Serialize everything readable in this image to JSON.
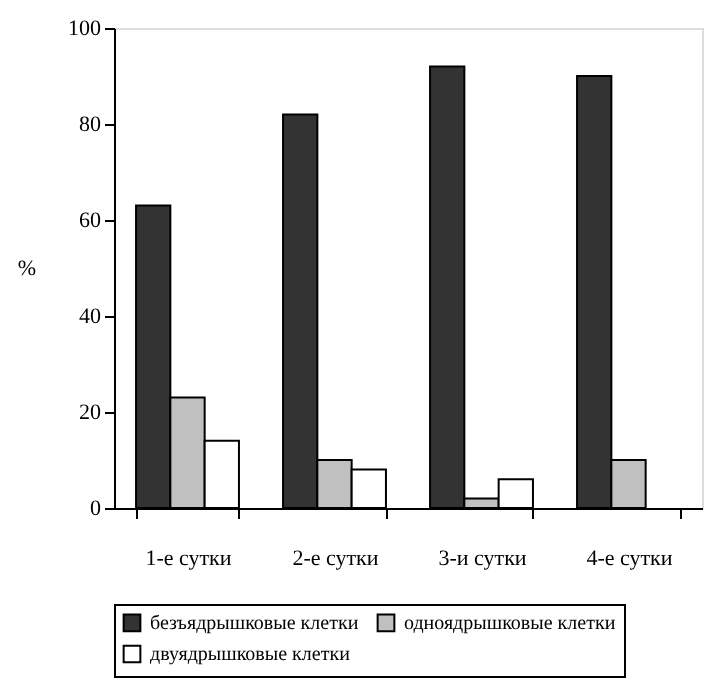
{
  "chart_data": {
    "type": "bar",
    "ylabel": "%",
    "categories": [
      "1-е сутки",
      "2-е сутки",
      "3-и сутки",
      "4-е сутки"
    ],
    "series": [
      {
        "name": "безъядрышковые клетки",
        "color": "#333333",
        "values": [
          63,
          82,
          92,
          90
        ]
      },
      {
        "name": "одноядрышковые клетки",
        "color": "#c0c0c0",
        "values": [
          23,
          10,
          2,
          10
        ]
      },
      {
        "name": "двуядрышковые клетки",
        "color": "#ffffff",
        "values": [
          14,
          8,
          6,
          null
        ]
      }
    ],
    "ylim": [
      0,
      100
    ],
    "yticks": [
      0,
      20,
      40,
      60,
      80,
      100
    ],
    "grid": false,
    "legend": "bottom"
  }
}
